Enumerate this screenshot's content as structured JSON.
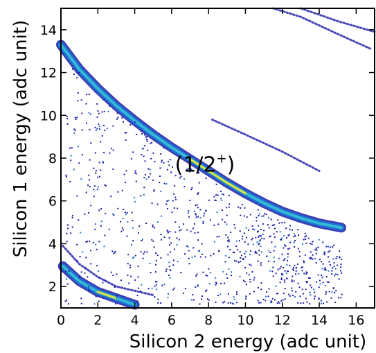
{
  "chart_data": {
    "type": "heatmap",
    "title": "",
    "xlabel": "Silicon 2 energy (adc unit)",
    "ylabel": "Silicon 1 energy (adc unit)",
    "xlim": [
      0,
      17
    ],
    "ylim": [
      1,
      15
    ],
    "x_ticks": [
      0,
      2,
      4,
      6,
      8,
      10,
      12,
      14,
      16
    ],
    "y_ticks": [
      2,
      4,
      6,
      8,
      10,
      12,
      14
    ],
    "x_tick_labels": [
      "0",
      "2",
      "4",
      "6",
      "8",
      "10",
      "12",
      "14",
      "16"
    ],
    "y_tick_labels": [
      "2",
      "4",
      "6",
      "8",
      "10",
      "12",
      "14"
    ],
    "colormap": [
      "#1a1aa6",
      "#1e6fd0",
      "#35b9d6",
      "#7fd67a",
      "#f2e23a"
    ],
    "grid": false,
    "annotations": [
      {
        "text": "(1/2",
        "superscript": "+",
        "text_after": ")",
        "x": 8.5,
        "y": 7.7
      }
    ],
    "bands": [
      {
        "points": [
          [
            0.0,
            13.3
          ],
          [
            1.0,
            12.15
          ],
          [
            2.0,
            11.25
          ],
          [
            3.0,
            10.45
          ],
          [
            4.0,
            9.75
          ],
          [
            5.0,
            9.1
          ],
          [
            6.0,
            8.5
          ],
          [
            7.0,
            7.95
          ],
          [
            8.0,
            7.4
          ],
          [
            9.0,
            6.85
          ],
          [
            10.0,
            6.35
          ],
          [
            11.0,
            5.9
          ],
          [
            12.0,
            5.5
          ],
          [
            13.0,
            5.2
          ],
          [
            14.0,
            4.95
          ],
          [
            15.2,
            4.75
          ]
        ],
        "hot": [
          [
            7.0,
            10.8
          ]
        ]
      },
      {
        "points": [
          [
            0.1,
            2.95
          ],
          [
            1.0,
            2.25
          ],
          [
            2.0,
            1.75
          ],
          [
            3.0,
            1.45
          ],
          [
            4.0,
            1.15
          ]
        ],
        "hot": [
          [
            1.8,
            3.6
          ]
        ]
      },
      {
        "points": [
          [
            0.1,
            3.9
          ],
          [
            1.0,
            3.05
          ],
          [
            2.0,
            2.45
          ],
          [
            3.0,
            2.0
          ],
          [
            5.0,
            1.6
          ]
        ],
        "hot": []
      },
      {
        "points": [
          [
            8.2,
            9.8
          ],
          [
            10.0,
            9.1
          ],
          [
            12.0,
            8.3
          ],
          [
            14.0,
            7.4
          ]
        ],
        "hot": []
      },
      {
        "points": [
          [
            11.5,
            15.0
          ],
          [
            13.0,
            14.6
          ],
          [
            15.0,
            13.8
          ],
          [
            16.8,
            13.1
          ]
        ],
        "hot": []
      },
      {
        "points": [
          [
            13.0,
            15.0
          ],
          [
            15.0,
            14.4
          ],
          [
            17.0,
            13.9
          ]
        ],
        "hot": []
      }
    ]
  }
}
